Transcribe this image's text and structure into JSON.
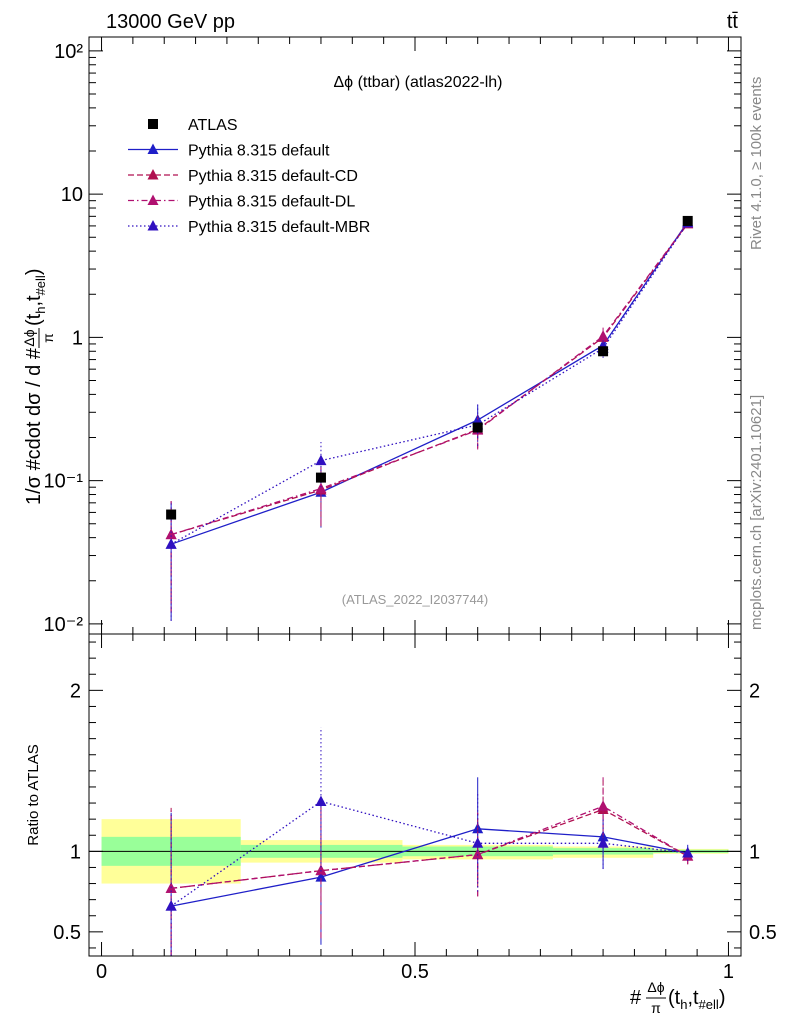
{
  "header": {
    "left": "13000 GeV pp",
    "right": "tt̄"
  },
  "side_labels": {
    "rivet": "Rivet 4.1.0, ≥ 100k events",
    "mcplots": "mcplots.cern.ch [arXiv:2401.10621]"
  },
  "chart_data": [
    {
      "panel": "main",
      "type": "line",
      "title": "Δϕ (ttbar) (atlas2022-lh)",
      "watermark": "(ATLAS_2022_I2037744)",
      "ylabel_text": "1/σ #cdot dσ / d #",
      "ylabel_frac_num": "Δϕ",
      "ylabel_frac_den": "π",
      "ylabel_tail": "(t",
      "ylabel_sub_h": "h",
      "ylabel_comma": ",t",
      "ylabel_sub_ell": "#ell",
      "ylabel_close": ")",
      "yscale": "log",
      "ylim": [
        0.0085,
        125
      ],
      "xlim": [
        -0.02,
        1.02
      ],
      "y_tick_labels": [
        "10⁻²",
        "10⁻¹",
        "1",
        "10",
        "10²"
      ],
      "y_tick_values": [
        0.01,
        0.1,
        1,
        10,
        100
      ],
      "series": [
        {
          "name": "ATLAS",
          "style": "data",
          "color": "#000000",
          "x": [
            0.111,
            0.35,
            0.6,
            0.8,
            0.935
          ],
          "y": [
            0.058,
            0.105,
            0.235,
            0.8,
            6.5
          ]
        },
        {
          "name": "Pythia 8.315 default",
          "style": "solid",
          "color": "#1f1fc8",
          "x": [
            0.111,
            0.35,
            0.6,
            0.8,
            0.935
          ],
          "y": [
            0.036,
            0.083,
            0.265,
            0.88,
            6.4
          ],
          "err_low": [
            0.0255,
            0.036,
            0.07,
            0.13,
            0.3
          ],
          "err_high": [
            0.0345,
            0.041,
            0.07,
            0.13,
            0.3
          ]
        },
        {
          "name": "Pythia 8.315 default-CD",
          "style": "dashed",
          "color": "#b01050",
          "x": [
            0.111,
            0.35,
            0.6,
            0.8,
            0.935
          ],
          "y": [
            0.042,
            0.086,
            0.228,
            1.0,
            6.2
          ],
          "err_low": [
            0.03,
            0.038,
            0.06,
            0.13,
            0.3
          ],
          "err_high": [
            0.03,
            0.038,
            0.06,
            0.15,
            0.3
          ]
        },
        {
          "name": "Pythia 8.315 default-DL",
          "style": "dashdot",
          "color": "#b01070",
          "x": [
            0.111,
            0.35,
            0.6,
            0.8,
            0.935
          ],
          "y": [
            0.042,
            0.088,
            0.225,
            1.02,
            6.25
          ],
          "err_low": [
            0.03,
            0.038,
            0.06,
            0.13,
            0.3
          ],
          "err_high": [
            0.03,
            0.038,
            0.06,
            0.15,
            0.3
          ]
        },
        {
          "name": "Pythia 8.315 default-MBR",
          "style": "dotted",
          "color": "#3010c0",
          "x": [
            0.111,
            0.35,
            0.6,
            0.8,
            0.935
          ],
          "y": [
            0.036,
            0.138,
            0.245,
            0.84,
            6.3
          ],
          "err_low": [
            0.0255,
            0.048,
            0.07,
            0.12,
            0.3
          ],
          "err_high": [
            0.0345,
            0.048,
            0.1,
            0.12,
            0.3
          ]
        }
      ]
    },
    {
      "panel": "ratio",
      "type": "line",
      "ylabel": "Ratio to ATLAS",
      "ylim": [
        0.35,
        2.35
      ],
      "xlim": [
        -0.02,
        1.02
      ],
      "y_tick_labels": [
        "0.5",
        "1",
        "2"
      ],
      "y_tick_values": [
        0.5,
        1,
        2
      ],
      "x_tick_labels": [
        "0",
        "0.5",
        "1"
      ],
      "x_tick_values": [
        0,
        0.5,
        1
      ],
      "xlabel_prefix": "#",
      "xlabel_frac_num": "Δϕ",
      "xlabel_frac_den": "π",
      "xlabel_tail": "(t",
      "xlabel_sub_h": "h",
      "xlabel_comma": ",t",
      "xlabel_sub_ell": "#ell",
      "xlabel_close": ")",
      "uncertainty_bins": [
        {
          "x0": 0.0,
          "x1": 0.222,
          "stat_lo": 0.91,
          "stat_hi": 1.09,
          "tot_lo": 0.8,
          "tot_hi": 1.2
        },
        {
          "x0": 0.222,
          "x1": 0.48,
          "stat_lo": 0.96,
          "stat_hi": 1.04,
          "tot_lo": 0.93,
          "tot_hi": 1.07
        },
        {
          "x0": 0.48,
          "x1": 0.72,
          "stat_lo": 0.97,
          "stat_hi": 1.03,
          "tot_lo": 0.95,
          "tot_hi": 1.04
        },
        {
          "x0": 0.72,
          "x1": 0.88,
          "stat_lo": 0.98,
          "stat_hi": 1.02,
          "tot_lo": 0.96,
          "tot_hi": 1.03
        },
        {
          "x0": 0.88,
          "x1": 1.0,
          "stat_lo": 0.99,
          "stat_hi": 1.01,
          "tot_lo": 0.985,
          "tot_hi": 1.015
        }
      ],
      "series": [
        {
          "name": "Pythia 8.315 default",
          "style": "solid",
          "color": "#1f1fc8",
          "x": [
            0.111,
            0.35,
            0.6,
            0.8,
            0.935
          ],
          "y": [
            0.66,
            0.84,
            1.14,
            1.09,
            0.99
          ],
          "err_low": [
            0.44,
            0.42,
            0.32,
            0.2,
            0.05
          ],
          "err_high": [
            0.58,
            0.44,
            0.32,
            0.2,
            0.05
          ]
        },
        {
          "name": "Pythia 8.315 default-CD",
          "style": "dashed",
          "color": "#b01050",
          "x": [
            0.111,
            0.35,
            0.6,
            0.8,
            0.935
          ],
          "y": [
            0.77,
            0.88,
            0.98,
            1.26,
            0.97
          ],
          "err_low": [
            0.5,
            0.42,
            0.26,
            0.18,
            0.05
          ],
          "err_high": [
            0.5,
            0.42,
            0.26,
            0.18,
            0.05
          ]
        },
        {
          "name": "Pythia 8.315 default-DL",
          "style": "dashdot",
          "color": "#b01070",
          "x": [
            0.111,
            0.35,
            0.6,
            0.8,
            0.935
          ],
          "y": [
            0.77,
            0.88,
            0.98,
            1.28,
            0.97
          ],
          "err_low": [
            0.5,
            0.42,
            0.26,
            0.18,
            0.05
          ],
          "err_high": [
            0.5,
            0.42,
            0.26,
            0.18,
            0.05
          ]
        },
        {
          "name": "Pythia 8.315 default-MBR",
          "style": "dotted",
          "color": "#3010c0",
          "x": [
            0.111,
            0.35,
            0.6,
            0.8,
            0.935
          ],
          "y": [
            0.66,
            1.31,
            1.05,
            1.05,
            0.99
          ],
          "err_low": [
            0.44,
            0.46,
            0.3,
            0.16,
            0.05
          ],
          "err_high": [
            0.58,
            0.46,
            0.32,
            0.16,
            0.05
          ]
        }
      ]
    }
  ]
}
